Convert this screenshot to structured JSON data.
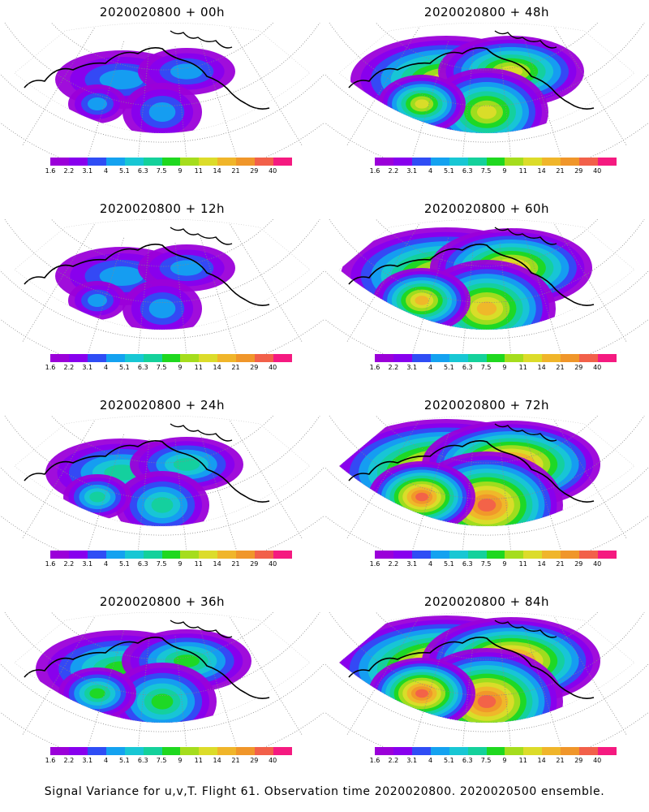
{
  "panels": [
    {
      "title": "2020020800  +  00h",
      "intensity": 1
    },
    {
      "title": "2020020800  +  48h",
      "intensity": 4
    },
    {
      "title": "2020020800  +  12h",
      "intensity": 1
    },
    {
      "title": "2020020800  +  60h",
      "intensity": 5
    },
    {
      "title": "2020020800  +  24h",
      "intensity": 2
    },
    {
      "title": "2020020800  +  72h",
      "intensity": 6
    },
    {
      "title": "2020020800  +  36h",
      "intensity": 3
    },
    {
      "title": "2020020800  +  84h",
      "intensity": 6
    }
  ],
  "colorbar": {
    "tick_labels": [
      "1.6",
      "2.2",
      "3.1",
      "4",
      "5.1",
      "6.3",
      "7.5",
      "9",
      "11",
      "14",
      "21",
      "29",
      "40"
    ],
    "colors": [
      "#9b00d9",
      "#8800ee",
      "#2f4df5",
      "#14a2f0",
      "#18c7d4",
      "#14d19b",
      "#1fd81f",
      "#a5dd1d",
      "#dcdc2a",
      "#f0b52a",
      "#f0962a",
      "#f2604a",
      "#f51a80"
    ]
  },
  "caption": "Signal Variance for u,v,T. Flight 61. Observation time 2020020800. 2020020500 ensemble."
}
